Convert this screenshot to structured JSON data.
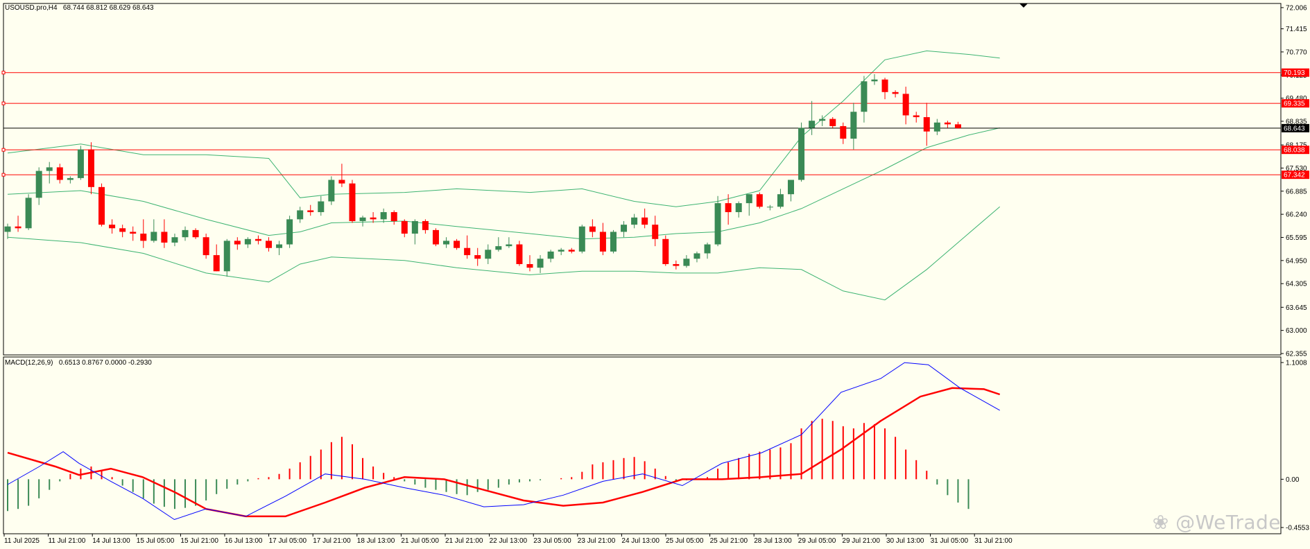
{
  "header": {
    "symbol": "USOUSD.pro,H4",
    "ohlc": "68.744 68.812 68.629 68.643"
  },
  "indicator": {
    "name": "MACD(12,26,9)",
    "values": "0.6513 0.8767 0.0000 -0.2930"
  },
  "watermark": "@WeTrade",
  "colors": {
    "background": "#fffff0",
    "bull": "#3a8a55",
    "bear": "#ff0000",
    "bands": "#3cb371",
    "macd_signal": "#ff0000",
    "macd_line": "#0000ff",
    "level": "#ff0000"
  },
  "chart_data": [
    {
      "type": "candlestick",
      "title": "USOUSD.pro,H4",
      "ylim": [
        62.355,
        72.006
      ],
      "yticks": [
        "72.006",
        "71.415",
        "70.770",
        "70.125",
        "69.480",
        "68.835",
        "68.175",
        "67.530",
        "66.885",
        "66.240",
        "65.595",
        "64.950",
        "64.305",
        "63.645",
        "63.000",
        "62.355"
      ],
      "xticks": [
        "11 Jul 2025",
        "11 Jul 21:00",
        "14 Jul 13:00",
        "15 Jul 05:00",
        "15 Jul 21:00",
        "16 Jul 13:00",
        "17 Jul 05:00",
        "17 Jul 21:00",
        "18 Jul 13:00",
        "21 Jul 05:00",
        "21 Jul 21:00",
        "22 Jul 13:00",
        "23 Jul 05:00",
        "23 Jul 21:00",
        "24 Jul 13:00",
        "25 Jul 05:00",
        "25 Jul 21:00",
        "28 Jul 13:00",
        "29 Jul 05:00",
        "29 Jul 21:00",
        "30 Jul 13:00",
        "31 Jul 05:00",
        "31 Jul 21:00"
      ],
      "levels": [
        {
          "label": "70.193",
          "value": 70.193,
          "color": "#ff0000"
        },
        {
          "label": "69.335",
          "value": 69.335,
          "color": "#ff0000"
        },
        {
          "label": "68.038",
          "value": 68.038,
          "color": "#ff0000"
        },
        {
          "label": "67.342",
          "value": 67.342,
          "color": "#ff0000"
        }
      ],
      "current_price": {
        "label": "68.643",
        "value": 68.643
      },
      "candles": [
        [
          65.75,
          65.98,
          65.55,
          65.9
        ],
        [
          65.9,
          66.2,
          65.75,
          65.85
        ],
        [
          65.85,
          66.8,
          65.8,
          66.7
        ],
        [
          66.7,
          67.55,
          66.5,
          67.45
        ],
        [
          67.45,
          67.7,
          67.1,
          67.55
        ],
        [
          67.55,
          67.65,
          67.1,
          67.2
        ],
        [
          67.2,
          67.3,
          67.1,
          67.25
        ],
        [
          67.25,
          68.15,
          67.2,
          68.05
        ],
        [
          68.05,
          68.25,
          66.8,
          67.0
        ],
        [
          67.0,
          67.1,
          65.9,
          65.95
        ],
        [
          65.95,
          66.1,
          65.7,
          65.85
        ],
        [
          65.85,
          65.95,
          65.6,
          65.75
        ],
        [
          65.75,
          65.9,
          65.5,
          65.7
        ],
        [
          65.7,
          66.1,
          65.3,
          65.5
        ],
        [
          65.5,
          66.1,
          65.45,
          65.75
        ],
        [
          65.75,
          66.1,
          65.3,
          65.45
        ],
        [
          65.45,
          65.7,
          65.35,
          65.6
        ],
        [
          65.6,
          65.9,
          65.5,
          65.8
        ],
        [
          65.8,
          65.85,
          65.55,
          65.6
        ],
        [
          65.6,
          65.7,
          65.0,
          65.1
        ],
        [
          65.1,
          65.4,
          64.65,
          64.65
        ],
        [
          64.65,
          65.55,
          64.5,
          65.5
        ],
        [
          65.5,
          65.6,
          65.25,
          65.4
        ],
        [
          65.4,
          65.6,
          65.3,
          65.55
        ],
        [
          65.55,
          65.65,
          65.4,
          65.5
        ],
        [
          65.5,
          65.6,
          65.2,
          65.3
        ],
        [
          65.3,
          65.5,
          65.1,
          65.4
        ],
        [
          65.4,
          66.2,
          65.3,
          66.1
        ],
        [
          66.1,
          66.45,
          66.0,
          66.35
        ],
        [
          66.35,
          66.5,
          66.2,
          66.3
        ],
        [
          66.3,
          66.75,
          66.2,
          66.6
        ],
        [
          66.6,
          67.3,
          66.5,
          67.2
        ],
        [
          67.2,
          67.65,
          67.0,
          67.1
        ],
        [
          67.1,
          67.2,
          66.0,
          66.05
        ],
        [
          66.05,
          66.2,
          65.9,
          66.15
        ],
        [
          66.15,
          66.3,
          66.0,
          66.1
        ],
        [
          66.1,
          66.4,
          66.0,
          66.3
        ],
        [
          66.3,
          66.35,
          65.95,
          66.05
        ],
        [
          66.05,
          66.1,
          65.6,
          65.7
        ],
        [
          65.7,
          66.1,
          65.4,
          66.05
        ],
        [
          66.05,
          66.1,
          65.7,
          65.8
        ],
        [
          65.8,
          65.85,
          65.35,
          65.4
        ],
        [
          65.4,
          65.6,
          65.3,
          65.5
        ],
        [
          65.5,
          65.55,
          65.25,
          65.3
        ],
        [
          65.3,
          65.65,
          65.0,
          65.1
        ],
        [
          65.1,
          65.3,
          64.8,
          65.0
        ],
        [
          65.0,
          65.4,
          64.85,
          65.25
        ],
        [
          65.25,
          65.6,
          65.2,
          65.35
        ],
        [
          65.35,
          65.6,
          65.3,
          65.4
        ],
        [
          65.4,
          65.5,
          64.8,
          64.85
        ],
        [
          64.85,
          65.1,
          64.65,
          64.75
        ],
        [
          64.75,
          65.1,
          64.6,
          65.0
        ],
        [
          65.0,
          65.25,
          64.9,
          65.2
        ],
        [
          65.2,
          65.3,
          65.1,
          65.25
        ],
        [
          65.25,
          65.3,
          65.15,
          65.2
        ],
        [
          65.2,
          65.95,
          65.15,
          65.9
        ],
        [
          65.9,
          66.1,
          65.6,
          65.75
        ],
        [
          65.75,
          66.0,
          65.1,
          65.2
        ],
        [
          65.2,
          65.8,
          65.15,
          65.75
        ],
        [
          65.75,
          66.05,
          65.6,
          65.95
        ],
        [
          65.95,
          66.25,
          65.85,
          66.15
        ],
        [
          66.15,
          66.4,
          65.85,
          65.95
        ],
        [
          65.95,
          66.2,
          65.35,
          65.55
        ],
        [
          65.55,
          65.65,
          64.8,
          64.85
        ],
        [
          64.85,
          64.95,
          64.7,
          64.8
        ],
        [
          64.8,
          65.1,
          64.75,
          65.0
        ],
        [
          65.0,
          65.2,
          64.9,
          65.15
        ],
        [
          65.15,
          65.45,
          65.0,
          65.4
        ],
        [
          65.4,
          66.75,
          65.35,
          66.55
        ],
        [
          66.55,
          66.8,
          65.95,
          66.3
        ],
        [
          66.3,
          66.6,
          66.15,
          66.55
        ],
        [
          66.55,
          66.8,
          66.2,
          66.8
        ],
        [
          66.8,
          66.85,
          66.4,
          66.45
        ],
        [
          66.45,
          66.5,
          66.35,
          66.45
        ],
        [
          66.45,
          66.95,
          66.4,
          66.8
        ],
        [
          66.8,
          67.2,
          66.6,
          67.2
        ],
        [
          67.2,
          68.8,
          67.15,
          68.65
        ],
        [
          68.65,
          69.4,
          68.45,
          68.85
        ],
        [
          68.85,
          69.0,
          68.7,
          68.9
        ],
        [
          68.9,
          68.95,
          68.65,
          68.7
        ],
        [
          68.7,
          68.8,
          68.2,
          68.35
        ],
        [
          68.35,
          69.35,
          68.05,
          69.1
        ],
        [
          69.1,
          70.1,
          68.8,
          69.95
        ],
        [
          69.95,
          70.15,
          69.85,
          70.0
        ],
        [
          70.0,
          70.05,
          69.45,
          69.65
        ],
        [
          69.65,
          69.7,
          69.5,
          69.6
        ],
        [
          69.6,
          69.8,
          68.75,
          69.0
        ],
        [
          69.0,
          69.1,
          68.8,
          68.95
        ],
        [
          68.95,
          69.35,
          68.15,
          68.55
        ],
        [
          68.55,
          68.9,
          68.45,
          68.8
        ],
        [
          68.8,
          68.85,
          68.65,
          68.75
        ],
        [
          68.75,
          68.82,
          68.63,
          68.643
        ]
      ],
      "bollinger": {
        "upper": [
          [
            0,
            67.95
          ],
          [
            7,
            68.2
          ],
          [
            13,
            67.9
          ],
          [
            19,
            67.9
          ],
          [
            25,
            67.8
          ],
          [
            28,
            66.7
          ],
          [
            31,
            66.8
          ],
          [
            38,
            66.85
          ],
          [
            43,
            66.95
          ],
          [
            50,
            66.85
          ],
          [
            55,
            66.95
          ],
          [
            60,
            66.6
          ],
          [
            64,
            66.45
          ],
          [
            68,
            66.6
          ],
          [
            72,
            66.9
          ],
          [
            76,
            68.4
          ],
          [
            80,
            69.4
          ],
          [
            84,
            70.55
          ],
          [
            88,
            70.8
          ],
          [
            92,
            70.7
          ],
          [
            95,
            70.6
          ]
        ],
        "middle": [
          [
            0,
            66.8
          ],
          [
            7,
            66.9
          ],
          [
            13,
            66.6
          ],
          [
            19,
            66.1
          ],
          [
            25,
            65.65
          ],
          [
            28,
            65.75
          ],
          [
            31,
            66.0
          ],
          [
            38,
            66.05
          ],
          [
            43,
            65.9
          ],
          [
            50,
            65.7
          ],
          [
            55,
            65.55
          ],
          [
            60,
            65.6
          ],
          [
            64,
            65.7
          ],
          [
            68,
            65.75
          ],
          [
            72,
            66.0
          ],
          [
            76,
            66.4
          ],
          [
            80,
            66.95
          ],
          [
            84,
            67.5
          ],
          [
            88,
            68.1
          ],
          [
            92,
            68.45
          ],
          [
            95,
            68.65
          ]
        ],
        "lower": [
          [
            0,
            65.6
          ],
          [
            7,
            65.45
          ],
          [
            13,
            65.15
          ],
          [
            19,
            64.6
          ],
          [
            25,
            64.35
          ],
          [
            28,
            64.85
          ],
          [
            31,
            65.05
          ],
          [
            38,
            64.95
          ],
          [
            43,
            64.75
          ],
          [
            50,
            64.55
          ],
          [
            55,
            64.65
          ],
          [
            60,
            64.65
          ],
          [
            64,
            64.6
          ],
          [
            68,
            64.6
          ],
          [
            72,
            64.75
          ],
          [
            76,
            64.7
          ],
          [
            80,
            64.1
          ],
          [
            84,
            63.85
          ],
          [
            88,
            64.7
          ],
          [
            92,
            65.7
          ],
          [
            95,
            66.45
          ]
        ]
      }
    },
    {
      "type": "bar",
      "title": "MACD(12,26,9)",
      "ylim": [
        -0.4553,
        1.1008
      ],
      "yticks": [
        "1.1008",
        "0.00",
        "-0.4553"
      ],
      "histogram": [
        -0.3,
        -0.28,
        -0.25,
        -0.18,
        -0.1,
        -0.02,
        0.05,
        0.1,
        0.12,
        0.08,
        0.02,
        -0.06,
        -0.12,
        -0.18,
        -0.23,
        -0.26,
        -0.28,
        -0.27,
        -0.25,
        -0.2,
        -0.14,
        -0.09,
        -0.05,
        -0.02,
        0.01,
        0.02,
        0.05,
        0.1,
        0.16,
        0.22,
        0.28,
        0.35,
        0.4,
        0.33,
        0.2,
        0.12,
        0.06,
        0.02,
        -0.02,
        -0.05,
        -0.08,
        -0.1,
        -0.12,
        -0.14,
        -0.15,
        -0.12,
        -0.1,
        -0.08,
        -0.05,
        -0.03,
        -0.02,
        -0.01,
        0.0,
        0.01,
        0.02,
        0.07,
        0.14,
        0.16,
        0.18,
        0.2,
        0.21,
        0.17,
        0.1,
        0.03,
        -0.02,
        -0.01,
        0.0,
        0.02,
        0.1,
        0.16,
        0.2,
        0.24,
        0.26,
        0.28,
        0.3,
        0.34,
        0.48,
        0.55,
        0.57,
        0.55,
        0.5,
        0.48,
        0.53,
        0.52,
        0.48,
        0.4,
        0.28,
        0.18,
        0.08,
        -0.05,
        -0.15,
        -0.22,
        -0.28
      ],
      "signal": [
        [
          0,
          0.25
        ],
        [
          6,
          0.12
        ],
        [
          9,
          0.04
        ],
        [
          13,
          0.1
        ],
        [
          17,
          0.02
        ],
        [
          21,
          -0.12
        ],
        [
          25,
          -0.28
        ],
        [
          30,
          -0.35
        ],
        [
          35,
          -0.35
        ],
        [
          40,
          -0.22
        ],
        [
          45,
          -0.08
        ],
        [
          50,
          0.02
        ],
        [
          55,
          0.0
        ],
        [
          60,
          -0.1
        ],
        [
          65,
          -0.2
        ],
        [
          70,
          -0.25
        ],
        [
          75,
          -0.22
        ],
        [
          80,
          -0.12
        ],
        [
          85,
          0.0
        ],
        [
          90,
          0.0
        ],
        [
          95,
          0.02
        ],
        [
          100,
          0.05
        ],
        [
          105,
          0.28
        ],
        [
          110,
          0.55
        ],
        [
          115,
          0.78
        ],
        [
          119,
          0.86
        ],
        [
          123,
          0.85
        ],
        [
          125,
          0.8
        ]
      ],
      "macd": [
        [
          0,
          -0.05
        ],
        [
          4,
          0.12
        ],
        [
          7,
          0.26
        ],
        [
          9,
          0.15
        ],
        [
          13,
          -0.02
        ],
        [
          17,
          -0.18
        ],
        [
          21,
          -0.38
        ],
        [
          25,
          -0.28
        ],
        [
          30,
          -0.35
        ],
        [
          35,
          -0.16
        ],
        [
          40,
          0.05
        ],
        [
          45,
          0.0
        ],
        [
          50,
          -0.08
        ],
        [
          55,
          -0.15
        ],
        [
          60,
          -0.26
        ],
        [
          65,
          -0.24
        ],
        [
          70,
          -0.15
        ],
        [
          75,
          -0.02
        ],
        [
          80,
          0.05
        ],
        [
          85,
          -0.06
        ],
        [
          90,
          0.15
        ],
        [
          95,
          0.25
        ],
        [
          100,
          0.42
        ],
        [
          105,
          0.82
        ],
        [
          110,
          0.95
        ],
        [
          113,
          1.1
        ],
        [
          116,
          1.08
        ],
        [
          120,
          0.86
        ],
        [
          125,
          0.65
        ]
      ]
    }
  ]
}
